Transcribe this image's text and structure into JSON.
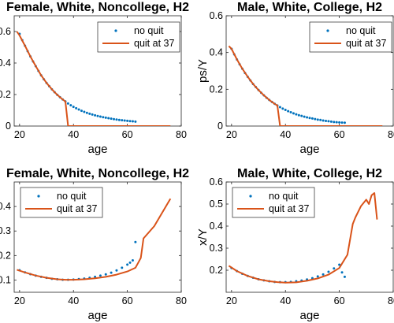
{
  "chart_data": [
    {
      "type": "line",
      "title": "Female, White, Noncollege, H2",
      "xlabel": "age",
      "ylabel": "ps/Y",
      "xlim": [
        18,
        80
      ],
      "ylim": [
        0,
        0.7
      ],
      "xticks": [
        "20",
        "40",
        "60",
        "80"
      ],
      "yticks": [
        "0",
        "0.2",
        "0.4",
        "0.6"
      ],
      "legend_position": "top-right",
      "series": [
        {
          "name": "no quit",
          "style": "dots",
          "color": "#0072BD",
          "x": [
            20,
            21,
            22,
            23,
            24,
            25,
            26,
            27,
            28,
            29,
            30,
            31,
            32,
            33,
            34,
            35,
            36,
            37,
            38,
            39,
            40,
            41,
            42,
            43,
            44,
            45,
            46,
            47,
            48,
            49,
            50,
            51,
            52,
            53,
            54,
            55,
            56,
            57,
            58,
            59,
            60,
            61,
            62,
            63
          ],
          "y": [
            0.585,
            0.545,
            0.51,
            0.475,
            0.442,
            0.41,
            0.38,
            0.35,
            0.322,
            0.297,
            0.274,
            0.253,
            0.233,
            0.215,
            0.198,
            0.183,
            0.169,
            0.156,
            0.143,
            0.132,
            0.122,
            0.113,
            0.105,
            0.097,
            0.09,
            0.084,
            0.078,
            0.073,
            0.068,
            0.064,
            0.06,
            0.056,
            0.053,
            0.05,
            0.047,
            0.044,
            0.041,
            0.039,
            0.037,
            0.035,
            0.033,
            0.031,
            0.03,
            0.028
          ]
        },
        {
          "name": "quit at 37",
          "style": "line",
          "color": "#D95319",
          "x": [
            19,
            20,
            22,
            24,
            26,
            28,
            30,
            32,
            34,
            36,
            37,
            38,
            39,
            76
          ],
          "y": [
            0.6,
            0.575,
            0.51,
            0.442,
            0.38,
            0.322,
            0.274,
            0.233,
            0.198,
            0.169,
            0.156,
            0.0,
            0.0,
            0.0
          ]
        }
      ]
    },
    {
      "type": "line",
      "title": "Male, White, College, H2",
      "xlabel": "age",
      "ylabel": "ps/Y",
      "xlim": [
        18,
        80
      ],
      "ylim": [
        0,
        0.6
      ],
      "xticks": [
        "20",
        "40",
        "60",
        "80"
      ],
      "yticks": [
        "0",
        "0.2",
        "0.4",
        "0.6"
      ],
      "legend_position": "top-right",
      "series": [
        {
          "name": "no quit",
          "style": "dots",
          "color": "#0072BD",
          "x": [
            20,
            21,
            22,
            23,
            24,
            25,
            26,
            27,
            28,
            29,
            30,
            31,
            32,
            33,
            34,
            35,
            36,
            37,
            38,
            39,
            40,
            41,
            42,
            43,
            44,
            45,
            46,
            47,
            48,
            49,
            50,
            51,
            52,
            53,
            54,
            55,
            56,
            57,
            58,
            59,
            60,
            61,
            62
          ],
          "y": [
            0.42,
            0.39,
            0.362,
            0.336,
            0.312,
            0.289,
            0.268,
            0.248,
            0.229,
            0.212,
            0.196,
            0.181,
            0.167,
            0.154,
            0.142,
            0.131,
            0.121,
            0.112,
            0.103,
            0.095,
            0.088,
            0.081,
            0.075,
            0.069,
            0.064,
            0.059,
            0.055,
            0.051,
            0.047,
            0.044,
            0.041,
            0.038,
            0.035,
            0.033,
            0.03,
            0.028,
            0.026,
            0.024,
            0.022,
            0.021,
            0.02,
            0.019,
            0.018
          ]
        },
        {
          "name": "quit at 37",
          "style": "line",
          "color": "#D95319",
          "x": [
            19,
            20,
            22,
            24,
            26,
            28,
            30,
            32,
            34,
            36,
            37,
            38,
            39,
            76
          ],
          "y": [
            0.435,
            0.42,
            0.362,
            0.312,
            0.268,
            0.229,
            0.196,
            0.167,
            0.142,
            0.121,
            0.112,
            0.0,
            0.0,
            0.0
          ]
        }
      ]
    },
    {
      "type": "line",
      "title": "Female, White, Noncollege, H2",
      "xlabel": "age",
      "ylabel": "x/Y",
      "xlim": [
        18,
        80
      ],
      "ylim": [
        0.05,
        0.5
      ],
      "xticks": [
        "20",
        "40",
        "60",
        "80"
      ],
      "yticks": [
        "0.1",
        "0.2",
        "0.3",
        "0.4"
      ],
      "legend_position": "top-left",
      "series": [
        {
          "name": "no quit",
          "style": "dots",
          "color": "#0072BD",
          "x": [
            20,
            22,
            24,
            26,
            28,
            30,
            32,
            34,
            36,
            38,
            40,
            42,
            44,
            46,
            48,
            50,
            52,
            54,
            56,
            58,
            60,
            61,
            62,
            63
          ],
          "y": [
            0.14,
            0.131,
            0.124,
            0.118,
            0.113,
            0.109,
            0.105,
            0.103,
            0.101,
            0.101,
            0.102,
            0.104,
            0.106,
            0.109,
            0.113,
            0.118,
            0.123,
            0.13,
            0.139,
            0.15,
            0.163,
            0.171,
            0.18,
            0.255
          ]
        },
        {
          "name": "quit at 37",
          "style": "line",
          "color": "#D95319",
          "x": [
            19,
            22,
            26,
            30,
            34,
            37,
            40,
            44,
            48,
            52,
            56,
            60,
            63,
            64,
            65,
            66,
            70,
            76
          ],
          "y": [
            0.142,
            0.131,
            0.118,
            0.109,
            0.103,
            0.101,
            0.101,
            0.103,
            0.107,
            0.113,
            0.122,
            0.135,
            0.15,
            0.17,
            0.19,
            0.27,
            0.32,
            0.432
          ]
        }
      ]
    },
    {
      "type": "line",
      "title": "Male, White, College, H2",
      "xlabel": "age",
      "ylabel": "x/Y",
      "xlim": [
        18,
        80
      ],
      "ylim": [
        0.1,
        0.6
      ],
      "xticks": [
        "20",
        "40",
        "60",
        "80"
      ],
      "yticks": [
        "0.2",
        "0.3",
        "0.4",
        "0.5",
        "0.6"
      ],
      "legend_position": "top-left",
      "series": [
        {
          "name": "no quit",
          "style": "dots",
          "color": "#0072BD",
          "x": [
            20,
            22,
            24,
            26,
            28,
            30,
            32,
            34,
            36,
            38,
            40,
            42,
            44,
            46,
            48,
            50,
            52,
            54,
            56,
            58,
            60,
            61,
            62
          ],
          "y": [
            0.21,
            0.196,
            0.184,
            0.174,
            0.166,
            0.159,
            0.154,
            0.15,
            0.147,
            0.146,
            0.146,
            0.147,
            0.15,
            0.153,
            0.158,
            0.164,
            0.172,
            0.181,
            0.193,
            0.208,
            0.225,
            0.19,
            0.17
          ]
        },
        {
          "name": "quit at 37",
          "style": "line",
          "color": "#D95319",
          "x": [
            19,
            22,
            26,
            30,
            34,
            37,
            40,
            44,
            48,
            52,
            56,
            60,
            63,
            65,
            66,
            68,
            70,
            71,
            72,
            73,
            74
          ],
          "y": [
            0.22,
            0.196,
            0.174,
            0.159,
            0.15,
            0.146,
            0.144,
            0.145,
            0.152,
            0.163,
            0.18,
            0.21,
            0.27,
            0.41,
            0.44,
            0.49,
            0.52,
            0.5,
            0.54,
            0.55,
            0.43
          ]
        }
      ]
    }
  ]
}
